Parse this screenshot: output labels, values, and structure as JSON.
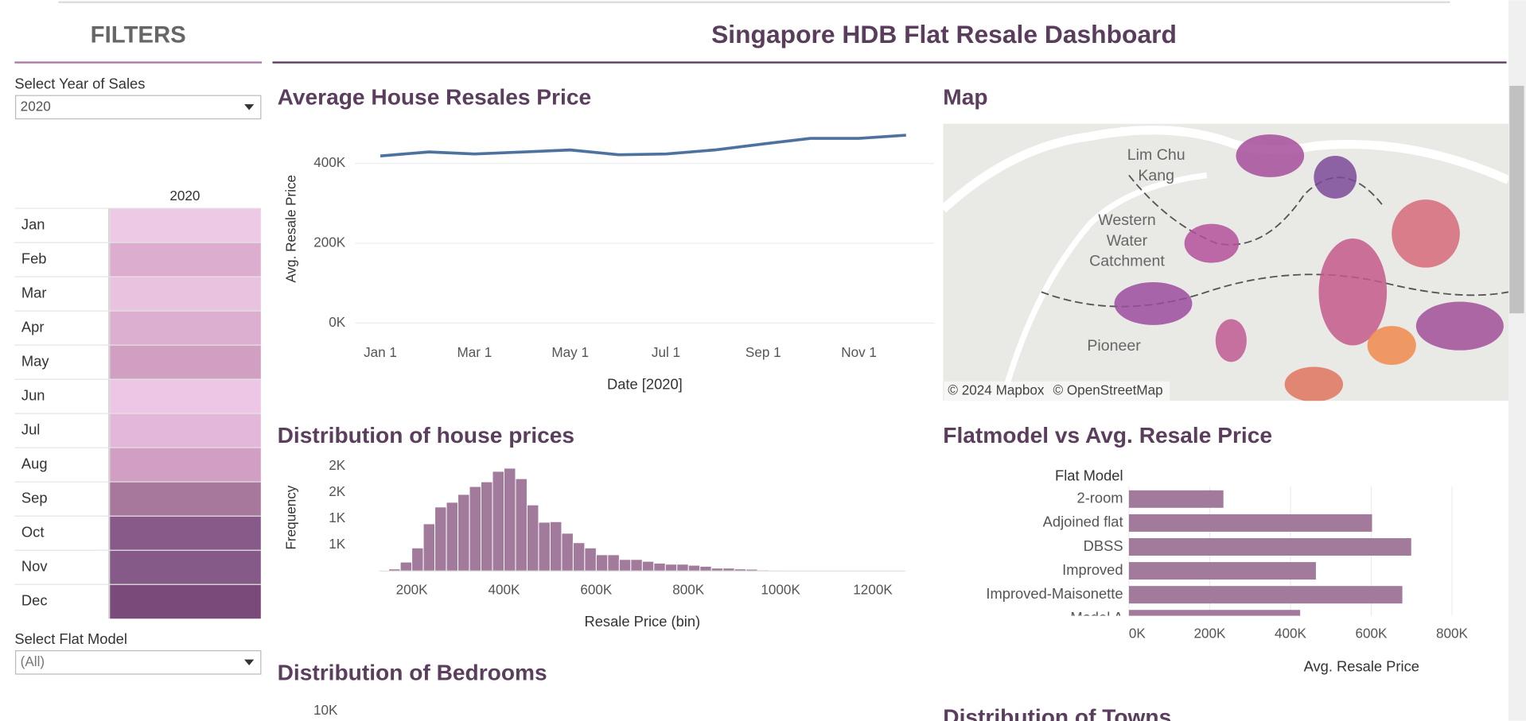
{
  "header": {
    "title": "Singapore HDB Flat Resale Dashboard"
  },
  "filters": {
    "title": "FILTERS",
    "year_label": "Select Year of Sales",
    "year_value": "2020",
    "model_label": "Select Flat Model",
    "model_value": "(All)"
  },
  "heatmap": {
    "column": "2020",
    "rows": [
      "Jan",
      "Feb",
      "Mar",
      "Apr",
      "May",
      "Jun",
      "Jul",
      "Aug",
      "Sep",
      "Oct",
      "Nov",
      "Dec"
    ],
    "colors": [
      "#edc9e5",
      "#dcadcf",
      "#e8c2df",
      "#dcaed0",
      "#d09fc2",
      "#ecc6e4",
      "#e3b7d9",
      "#d19fc3",
      "#a8779c",
      "#875a89",
      "#865a88",
      "#7a4a7a"
    ]
  },
  "map": {
    "title": "Map",
    "labels": [
      [
        "Lim Chu",
        "Kang"
      ],
      [
        "Western",
        "Water",
        "Catchment"
      ],
      [
        "Pioneer"
      ]
    ],
    "attribution": [
      "© 2024 Mapbox",
      "© OpenStreetMap"
    ]
  },
  "chart_data": [
    {
      "type": "line",
      "title": "Average House Resales Price",
      "x_label": "Date [2020]",
      "y_label": "Avg. Resale Price",
      "x": [
        "2020-01-01",
        "2020-02-01",
        "2020-03-01",
        "2020-04-01",
        "2020-05-01",
        "2020-06-01",
        "2020-07-01",
        "2020-08-01",
        "2020-09-01",
        "2020-10-01",
        "2020-11-01",
        "2020-12-01"
      ],
      "values": [
        419000,
        429000,
        424000,
        429000,
        434000,
        422000,
        424000,
        434000,
        449000,
        463000,
        463000,
        471000
      ],
      "color": "#4e72a0",
      "xlim": [
        "2019-12-16",
        "2020-12-19"
      ],
      "xticks": [
        {
          "value": "2020-01-01",
          "label": "Jan 1"
        },
        {
          "value": "2020-03-01",
          "label": "Mar 1"
        },
        {
          "value": "2020-05-01",
          "label": "May 1"
        },
        {
          "value": "2020-07-01",
          "label": "Jul 1"
        },
        {
          "value": "2020-09-01",
          "label": "Sep 1"
        },
        {
          "value": "2020-11-01",
          "label": "Nov 1"
        }
      ],
      "ylim": [
        0,
        490000
      ],
      "yticks": [
        {
          "value": 0,
          "label": "0K"
        },
        {
          "value": 200000,
          "label": "200K"
        },
        {
          "value": 400000,
          "label": "400K"
        }
      ],
      "grid": true
    },
    {
      "type": "histogram",
      "title": "Distribution of house prices",
      "x_label": "Resale Price (bin)",
      "y_label": "Frequency",
      "bins": [
        150000,
        175000,
        200000,
        225000,
        250000,
        275000,
        300000,
        325000,
        350000,
        375000,
        400000,
        425000,
        450000,
        475000,
        500000,
        525000,
        550000,
        575000,
        600000,
        625000,
        650000,
        675000,
        700000,
        725000,
        750000,
        775000,
        800000,
        825000,
        850000,
        875000,
        900000,
        925000,
        950000,
        975000,
        1000000
      ],
      "values": [
        40,
        170,
        440,
        900,
        1220,
        1310,
        1460,
        1610,
        1700,
        1900,
        1960,
        1760,
        1260,
        930,
        940,
        720,
        540,
        440,
        310,
        310,
        220,
        220,
        185,
        150,
        130,
        130,
        110,
        90,
        55,
        55,
        40,
        35,
        20,
        15
      ],
      "color": "#a27b9c",
      "xlim": [
        130000,
        1270000
      ],
      "xticks": [
        {
          "value": 200000,
          "label": "200K"
        },
        {
          "value": 400000,
          "label": "400K"
        },
        {
          "value": 600000,
          "label": "600K"
        },
        {
          "value": 800000,
          "label": "800K"
        },
        {
          "value": 1000000,
          "label": "1000K"
        },
        {
          "value": 1200000,
          "label": "1200K"
        }
      ],
      "ylim": [
        0,
        2150
      ],
      "yticks": [
        {
          "value": 500,
          "label": "1K"
        },
        {
          "value": 1000,
          "label": "1K"
        },
        {
          "value": 1500,
          "label": "2K"
        },
        {
          "value": 2000,
          "label": "2K"
        }
      ]
    },
    {
      "type": "hbar",
      "title": "Flatmodel vs Avg. Resale Price",
      "category_label": "Flat Model",
      "x_label": "Avg. Resale Price",
      "categories": [
        "2-room",
        "Adjoined flat",
        "DBSS",
        "Improved",
        "Improved-Maisonette",
        "Model A"
      ],
      "values": [
        234000,
        602000,
        699000,
        463000,
        677000,
        424000
      ],
      "color": "#a27b9c",
      "xlim": [
        0,
        935000
      ],
      "xticks": [
        {
          "value": 0,
          "label": "0K"
        },
        {
          "value": 200000,
          "label": "200K"
        },
        {
          "value": 400000,
          "label": "400K"
        },
        {
          "value": 600000,
          "label": "600K"
        },
        {
          "value": 800000,
          "label": "800K"
        }
      ],
      "grid": true
    },
    {
      "type": "bar",
      "title": "Distribution of Bedrooms",
      "yticks": [
        {
          "value": 10000,
          "label": "10K"
        }
      ]
    },
    {
      "type": "bar",
      "title": "Distribution of Towns"
    }
  ]
}
